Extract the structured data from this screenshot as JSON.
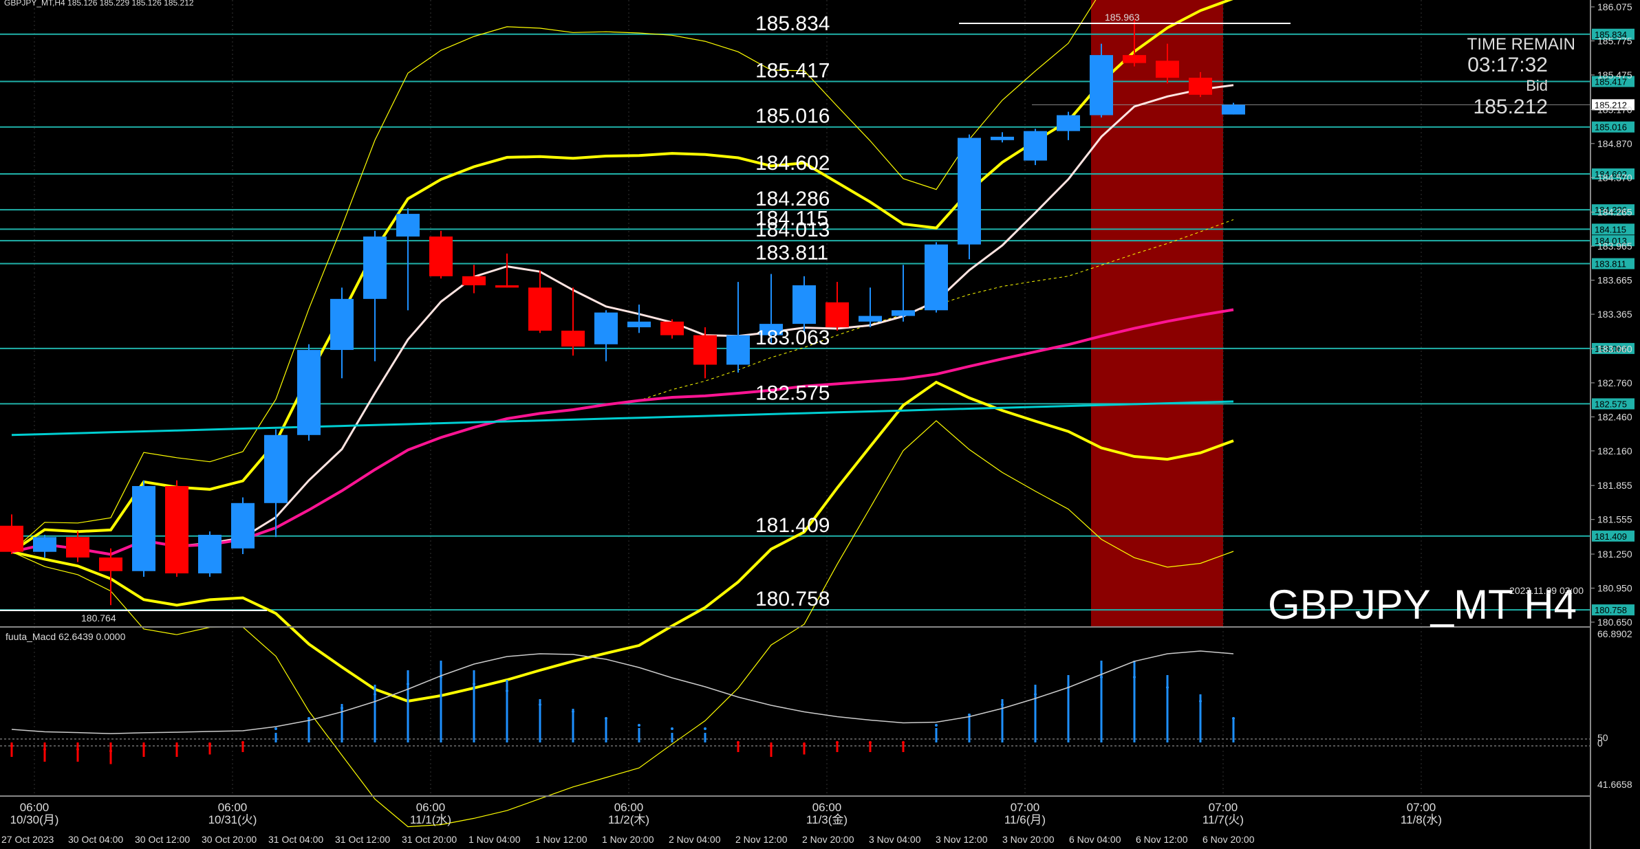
{
  "header": {
    "symbol_info": "GBPJPY_MT,H4  185.126 185.229 185.126 185.212",
    "watermark": "GBPJPY_MT H4",
    "server_time": "2023.11.09 03:00"
  },
  "timer": {
    "title": "TIME REMAIN",
    "countdown": "03:17:32",
    "bid_label": "Bid",
    "bid_value": "185.212"
  },
  "colors": {
    "background": "#000000",
    "bull": "#1E90FF",
    "bear": "#FF0000",
    "level_line": "#20B2AA",
    "bollinger": "#FFFF00",
    "ma_pink": "#FF1493",
    "ma_cyan": "#00CED1",
    "ma_white": "#FFE4E1",
    "highlight": "#8B0000",
    "macd_bar_up": "#1E90FF",
    "macd_bar_down": "#FF0000"
  },
  "price_levels": [
    185.834,
    185.417,
    185.016,
    184.602,
    184.286,
    184.115,
    184.013,
    183.811,
    183.063,
    182.575,
    181.409,
    180.758
  ],
  "marked_prices": {
    "high": "185.963",
    "low": "180.764"
  },
  "price_axis_ticks": [
    "186.075",
    "185.775",
    "185.475",
    "185.170",
    "184.870",
    "184.570",
    "184.265",
    "183.965",
    "183.665",
    "183.365",
    "183.060",
    "182.760",
    "182.460",
    "182.160",
    "181.855",
    "181.555",
    "181.250",
    "180.950",
    "180.650"
  ],
  "date_labels_top": [
    "06:00\n10/30(月)",
    "06:00\n10/31(火)",
    "06:00\n11/1(水)",
    "06:00\n11/2(木)",
    "06:00\n11/3(金)",
    "07:00\n11/6(月)",
    "07:00\n11/7(火)",
    "07:00\n11/8(水)"
  ],
  "date_labels_bottom": [
    "27 Oct 2023",
    "30 Oct 04:00",
    "30 Oct 12:00",
    "30 Oct 20:00",
    "31 Oct 04:00",
    "31 Oct 12:00",
    "31 Oct 20:00",
    "1 Nov 04:00",
    "1 Nov 12:00",
    "1 Nov 20:00",
    "2 Nov 04:00",
    "2 Nov 12:00",
    "2 Nov 20:00",
    "3 Nov 04:00",
    "3 Nov 12:00",
    "3 Nov 20:00",
    "6 Nov 04:00",
    "6 Nov 12:00",
    "6 Nov 20:00"
  ],
  "macd": {
    "label": "fuuta_Macd 62.6439  0.0000",
    "axis_ticks": [
      "66.8902",
      "50",
      "0",
      "41.6658"
    ]
  },
  "chart_data": {
    "type": "candlestick",
    "symbol": "GBPJPY_MT",
    "timeframe": "H4",
    "ylim": [
      180.65,
      186.075
    ],
    "candles": [
      {
        "o": 181.5,
        "h": 181.6,
        "l": 181.25,
        "c": 181.27
      },
      {
        "o": 181.27,
        "h": 181.42,
        "l": 181.22,
        "c": 181.4
      },
      {
        "o": 181.4,
        "h": 181.45,
        "l": 181.18,
        "c": 181.22
      },
      {
        "o": 181.22,
        "h": 181.3,
        "l": 180.8,
        "c": 181.1
      },
      {
        "o": 181.1,
        "h": 181.9,
        "l": 181.05,
        "c": 181.85
      },
      {
        "o": 181.85,
        "h": 181.9,
        "l": 181.05,
        "c": 181.08
      },
      {
        "o": 181.08,
        "h": 181.45,
        "l": 181.05,
        "c": 181.42
      },
      {
        "o": 181.3,
        "h": 181.75,
        "l": 181.25,
        "c": 181.7
      },
      {
        "o": 181.7,
        "h": 182.35,
        "l": 181.4,
        "c": 182.3
      },
      {
        "o": 182.3,
        "h": 183.1,
        "l": 182.25,
        "c": 183.05
      },
      {
        "o": 183.05,
        "h": 183.6,
        "l": 182.8,
        "c": 183.5
      },
      {
        "o": 183.5,
        "h": 184.1,
        "l": 182.95,
        "c": 184.05
      },
      {
        "o": 184.05,
        "h": 184.3,
        "l": 183.4,
        "c": 184.25
      },
      {
        "o": 184.05,
        "h": 184.1,
        "l": 183.68,
        "c": 183.7
      },
      {
        "o": 183.7,
        "h": 183.8,
        "l": 183.55,
        "c": 183.62
      },
      {
        "o": 183.62,
        "h": 183.9,
        "l": 183.6,
        "c": 183.6
      },
      {
        "o": 183.6,
        "h": 183.75,
        "l": 183.2,
        "c": 183.22
      },
      {
        "o": 183.22,
        "h": 183.6,
        "l": 183.0,
        "c": 183.08
      },
      {
        "o": 183.1,
        "h": 183.4,
        "l": 182.95,
        "c": 183.38
      },
      {
        "o": 183.25,
        "h": 183.45,
        "l": 183.2,
        "c": 183.3
      },
      {
        "o": 183.3,
        "h": 183.32,
        "l": 183.15,
        "c": 183.18
      },
      {
        "o": 183.18,
        "h": 183.25,
        "l": 182.8,
        "c": 182.92
      },
      {
        "o": 182.92,
        "h": 183.65,
        "l": 182.85,
        "c": 183.18
      },
      {
        "o": 183.18,
        "h": 183.72,
        "l": 183.1,
        "c": 183.28
      },
      {
        "o": 183.28,
        "h": 183.7,
        "l": 183.2,
        "c": 183.62
      },
      {
        "o": 183.47,
        "h": 183.65,
        "l": 183.22,
        "c": 183.25
      },
      {
        "o": 183.3,
        "h": 183.6,
        "l": 183.25,
        "c": 183.35
      },
      {
        "o": 183.35,
        "h": 183.8,
        "l": 183.3,
        "c": 183.4
      },
      {
        "o": 183.4,
        "h": 184.0,
        "l": 183.38,
        "c": 183.98
      },
      {
        "o": 183.98,
        "h": 184.95,
        "l": 183.85,
        "c": 184.92
      },
      {
        "o": 184.9,
        "h": 184.97,
        "l": 184.88,
        "c": 184.93
      },
      {
        "o": 184.72,
        "h": 185.0,
        "l": 184.68,
        "c": 184.98
      },
      {
        "o": 184.98,
        "h": 185.15,
        "l": 184.9,
        "c": 185.12
      },
      {
        "o": 185.12,
        "h": 185.75,
        "l": 185.1,
        "c": 185.65
      },
      {
        "o": 185.65,
        "h": 185.963,
        "l": 185.55,
        "c": 185.58
      },
      {
        "o": 185.6,
        "h": 185.75,
        "l": 185.4,
        "c": 185.45
      },
      {
        "o": 185.45,
        "h": 185.5,
        "l": 185.28,
        "c": 185.3
      },
      {
        "o": 185.126,
        "h": 185.229,
        "l": 185.126,
        "c": 185.212
      }
    ],
    "macd_hist": [
      -0.3,
      -0.4,
      -0.4,
      -0.45,
      -0.3,
      -0.3,
      -0.25,
      -0.2,
      0.2,
      0.5,
      0.8,
      1.2,
      1.5,
      1.7,
      1.5,
      1.3,
      0.9,
      0.7,
      0.5,
      0.3,
      0.2,
      0.2,
      -0.2,
      -0.3,
      -0.25,
      -0.2,
      -0.2,
      -0.2,
      0.3,
      0.6,
      0.9,
      1.2,
      1.4,
      1.7,
      1.7,
      1.4,
      1.0,
      0.5
    ]
  }
}
